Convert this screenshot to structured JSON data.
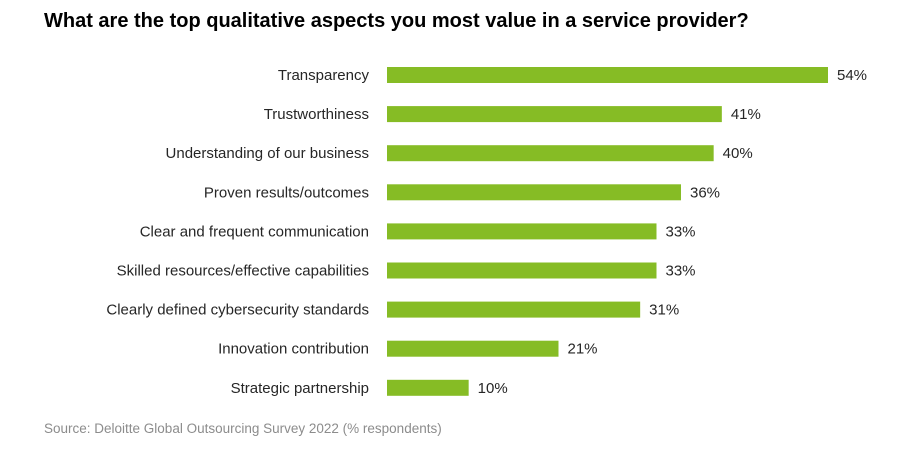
{
  "chart_data": {
    "type": "bar",
    "orientation": "horizontal",
    "title": "What are the top qualitative aspects you most value in a service provider?",
    "categories": [
      "Transparency",
      "Trustworthiness",
      "Understanding of our business",
      "Proven results/outcomes",
      "Clear and frequent communication",
      "Skilled resources/effective capabilities",
      "Clearly defined cybersecurity standards",
      "Innovation contribution",
      "Strategic partnership"
    ],
    "values": [
      54,
      41,
      40,
      36,
      33,
      33,
      31,
      21,
      10
    ],
    "value_labels": [
      "54%",
      "41%",
      "40%",
      "36%",
      "33%",
      "33%",
      "31%",
      "21%",
      "10%"
    ],
    "unit": "%",
    "bar_color": "#86bc25",
    "grid": false,
    "legend": "none",
    "source": "Source: Deloitte Global Outsourcing Survey 2022 (% respondents)"
  }
}
